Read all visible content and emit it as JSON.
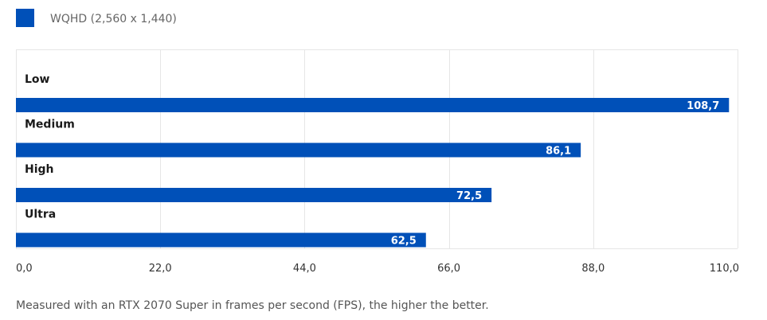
{
  "chart_data": {
    "type": "bar",
    "orientation": "horizontal",
    "categories": [
      "Low",
      "Medium",
      "High",
      "Ultra"
    ],
    "series": [
      {
        "name": "WQHD (2,560 x 1,440)",
        "values": [
          108.7,
          86.1,
          72.5,
          62.5
        ],
        "value_labels": [
          "108,7",
          "86,1",
          "72,5",
          "62,5"
        ],
        "color": "#0050b8"
      }
    ],
    "xlim": [
      0,
      110
    ],
    "xticks": [
      0,
      22,
      44,
      66,
      88,
      110
    ],
    "xtick_labels": [
      "0,0",
      "22,0",
      "44,0",
      "66,0",
      "88,0",
      "110,0"
    ],
    "grid": true,
    "legend_position": "top-left",
    "footnote": "Measured with an RTX 2070 Super in frames per second (FPS), the higher the better."
  },
  "colors": {
    "bar": "#0050b8",
    "grid": "#e6e6e6"
  }
}
